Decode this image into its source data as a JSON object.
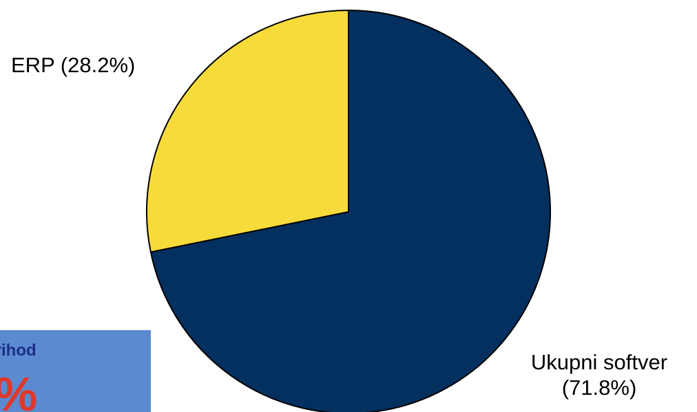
{
  "chart_data": {
    "type": "pie",
    "slices": [
      {
        "label": "Ukupni softver",
        "value_label": "(71.8%)",
        "value": 71.8,
        "color": "#03305f"
      },
      {
        "label": "ERP (28.2%)",
        "value": 28.2,
        "color": "#f7db3a"
      }
    ],
    "start_angle_deg": 0,
    "direction": "clockwise",
    "slice_border_color": "#000000"
  },
  "info_box": {
    "text": "prihod",
    "value": "%",
    "background": "#5b8ad0",
    "text_color": "#1b2f86",
    "value_color": "#e0382a"
  }
}
